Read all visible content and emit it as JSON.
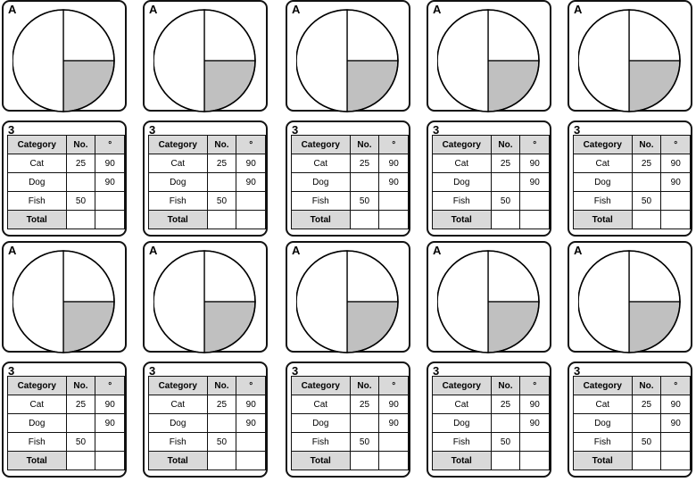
{
  "pie_label": "A",
  "table_label": "3",
  "table": {
    "headers": [
      "Category",
      "No.",
      "°"
    ],
    "rows": [
      [
        "Cat",
        "25",
        "90"
      ],
      [
        "Dog",
        "",
        "90"
      ],
      [
        "Fish",
        "50",
        ""
      ],
      [
        "Total",
        "",
        ""
      ]
    ]
  },
  "chart_data": {
    "type": "pie",
    "title": "",
    "slices": [
      {
        "label": "",
        "degrees": 90,
        "fill": "#ffffff"
      },
      {
        "label": "",
        "degrees": 90,
        "fill": "#c0c0c0"
      },
      {
        "label": "",
        "degrees": 180,
        "fill": "#ffffff"
      }
    ],
    "start": "12 o'clock",
    "direction": "clockwise"
  },
  "colors": {
    "shaded": "#c0c0c0",
    "outline": "#000000",
    "header_fill": "#d9d9d9"
  },
  "layout_repeat": {
    "columns": 5,
    "rows": 2
  }
}
